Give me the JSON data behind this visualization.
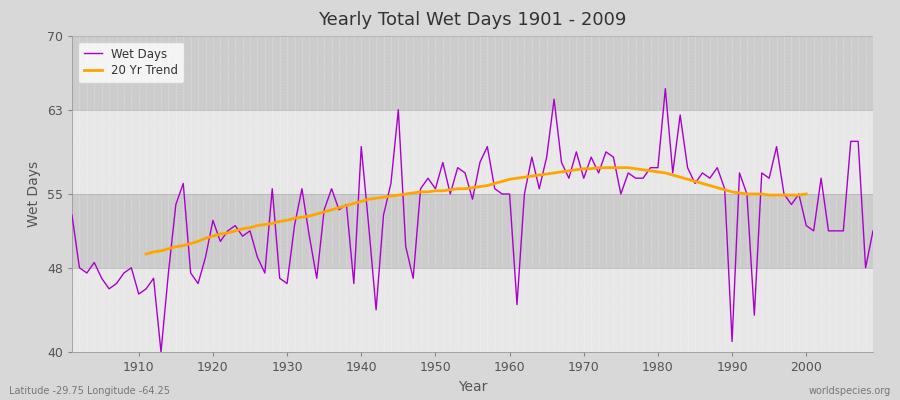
{
  "title": "Yearly Total Wet Days 1901 - 2009",
  "xlabel": "Year",
  "ylabel": "Wet Days",
  "bottom_left_label": "Latitude -29.75 Longitude -64.25",
  "bottom_right_label": "worldspecies.org",
  "ylim": [
    40,
    70
  ],
  "yticks": [
    40,
    48,
    55,
    63,
    70
  ],
  "xlim": [
    1901,
    2009
  ],
  "xticks": [
    1910,
    1920,
    1930,
    1940,
    1950,
    1960,
    1970,
    1980,
    1990,
    2000
  ],
  "line_color": "#AA00CC",
  "trend_color": "#FFA500",
  "bg_color": "#D8D8D8",
  "band_color_light": "#E8E8E8",
  "band_color_dark": "#CCCCCC",
  "legend_entries": [
    "Wet Days",
    "20 Yr Trend"
  ],
  "years": [
    1901,
    1902,
    1903,
    1904,
    1905,
    1906,
    1907,
    1908,
    1909,
    1910,
    1911,
    1912,
    1913,
    1914,
    1915,
    1916,
    1917,
    1918,
    1919,
    1920,
    1921,
    1922,
    1923,
    1924,
    1925,
    1926,
    1927,
    1928,
    1929,
    1930,
    1931,
    1932,
    1933,
    1934,
    1935,
    1936,
    1937,
    1938,
    1939,
    1940,
    1941,
    1942,
    1943,
    1944,
    1945,
    1946,
    1947,
    1948,
    1949,
    1950,
    1951,
    1952,
    1953,
    1954,
    1955,
    1956,
    1957,
    1958,
    1959,
    1960,
    1961,
    1962,
    1963,
    1964,
    1965,
    1966,
    1967,
    1968,
    1969,
    1970,
    1971,
    1972,
    1973,
    1974,
    1975,
    1976,
    1977,
    1978,
    1979,
    1980,
    1981,
    1982,
    1983,
    1984,
    1985,
    1986,
    1987,
    1988,
    1989,
    1990,
    1991,
    1992,
    1993,
    1994,
    1995,
    1996,
    1997,
    1998,
    1999,
    2000,
    2001,
    2002,
    2003,
    2004,
    2005,
    2006,
    2007,
    2008,
    2009
  ],
  "wet_days": [
    53.0,
    48.0,
    47.5,
    48.5,
    47.0,
    46.0,
    46.5,
    47.5,
    48.0,
    45.5,
    46.0,
    47.0,
    40.0,
    47.5,
    54.0,
    56.0,
    47.5,
    46.5,
    49.0,
    52.5,
    50.5,
    51.5,
    52.0,
    51.0,
    51.5,
    49.0,
    47.5,
    55.5,
    47.0,
    46.5,
    52.0,
    55.5,
    51.0,
    47.0,
    53.5,
    55.5,
    53.5,
    54.0,
    46.5,
    59.5,
    52.0,
    44.0,
    53.0,
    56.0,
    63.0,
    50.0,
    47.0,
    55.5,
    56.5,
    55.5,
    58.0,
    55.0,
    57.5,
    57.0,
    54.5,
    58.0,
    59.5,
    55.5,
    55.0,
    55.0,
    44.5,
    55.0,
    58.5,
    55.5,
    58.5,
    64.0,
    58.0,
    56.5,
    59.0,
    56.5,
    58.5,
    57.0,
    59.0,
    58.5,
    55.0,
    57.0,
    56.5,
    56.5,
    57.5,
    57.5,
    65.0,
    57.0,
    62.5,
    57.5,
    56.0,
    57.0,
    56.5,
    57.5,
    55.5,
    41.0,
    57.0,
    55.0,
    43.5,
    57.0,
    56.5,
    59.5,
    55.0,
    54.0,
    55.0,
    52.0,
    51.5,
    56.5,
    51.5,
    51.5,
    51.5,
    60.0,
    60.0,
    48.0,
    51.5
  ],
  "trend_start": 1911,
  "trend_values": [
    49.3,
    49.5,
    49.6,
    49.8,
    50.0,
    50.1,
    50.3,
    50.5,
    50.8,
    51.0,
    51.2,
    51.3,
    51.5,
    51.7,
    51.8,
    52.0,
    52.1,
    52.2,
    52.4,
    52.5,
    52.7,
    52.8,
    52.9,
    53.1,
    53.3,
    53.5,
    53.7,
    53.9,
    54.1,
    54.3,
    54.5,
    54.6,
    54.7,
    54.8,
    54.9,
    55.0,
    55.1,
    55.2,
    55.2,
    55.3,
    55.3,
    55.4,
    55.5,
    55.5,
    55.6,
    55.7,
    55.8,
    56.0,
    56.2,
    56.4,
    56.5,
    56.6,
    56.7,
    56.8,
    56.9,
    57.0,
    57.1,
    57.2,
    57.3,
    57.4,
    57.4,
    57.5,
    57.5,
    57.5,
    57.5,
    57.5,
    57.4,
    57.3,
    57.2,
    57.1,
    57.0,
    56.8,
    56.6,
    56.4,
    56.2,
    56.0,
    55.8,
    55.6,
    55.4,
    55.2,
    55.1,
    55.0,
    55.0,
    55.0,
    54.9,
    54.9,
    54.9,
    54.9,
    54.9,
    55.0
  ]
}
